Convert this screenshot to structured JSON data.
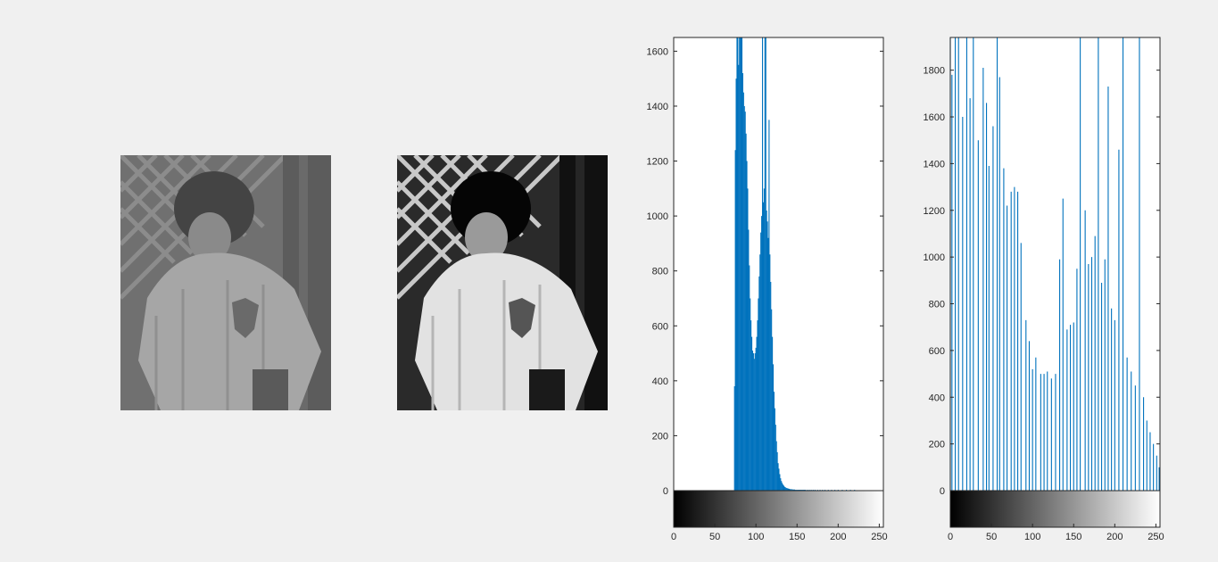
{
  "figure": {
    "background": "#f0f0f0",
    "bar_color": "#0072bd",
    "images": [
      {
        "name": "original",
        "tone": "low-contrast grayscale",
        "luma_range": [
          74,
          160
        ]
      },
      {
        "name": "equalized",
        "tone": "histogram-equalized grayscale",
        "luma_range": [
          0,
          255
        ]
      }
    ]
  },
  "chart_data": [
    {
      "type": "bar",
      "title": "",
      "xlabel": "",
      "ylabel": "",
      "xlim": [
        0,
        255
      ],
      "ylim": [
        0,
        1650
      ],
      "xticks": [
        0,
        50,
        100,
        150,
        200,
        250
      ],
      "yticks": [
        0,
        200,
        400,
        600,
        800,
        1000,
        1200,
        1400,
        1600
      ],
      "colorbar": "gray 0-255",
      "series": [
        {
          "x": [
            74,
            75,
            76,
            77,
            78,
            79,
            80,
            81,
            82,
            83,
            84,
            85,
            86,
            87,
            88,
            89,
            90,
            91,
            92,
            93,
            94,
            95,
            96,
            97,
            98,
            99,
            100,
            101,
            102,
            103,
            104,
            105,
            106,
            107,
            108,
            109,
            110,
            111,
            112,
            113,
            114,
            115,
            116,
            117,
            118,
            119,
            120,
            121,
            122,
            123,
            124,
            125,
            126,
            127,
            128,
            129,
            130,
            131,
            132,
            133,
            134,
            135,
            136,
            137,
            138,
            139,
            140,
            141,
            142,
            143,
            144,
            145,
            146,
            147,
            148,
            149,
            150,
            151,
            152,
            153,
            154,
            155,
            156,
            157,
            158,
            159,
            160,
            162,
            164,
            166,
            168,
            170,
            172,
            175,
            178,
            181,
            184,
            188,
            192,
            196,
            200,
            205,
            210,
            215,
            220
          ],
          "values": [
            380,
            1240,
            1500,
            1650,
            1650,
            1550,
            1650,
            1650,
            1650,
            1650,
            1520,
            1450,
            1400,
            1380,
            1300,
            1200,
            1100,
            950,
            820,
            700,
            620,
            560,
            510,
            500,
            480,
            500,
            520,
            560,
            620,
            700,
            780,
            860,
            940,
            1000,
            1650,
            1050,
            1100,
            1650,
            1650,
            1020,
            980,
            920,
            1350,
            860,
            760,
            660,
            560,
            460,
            360,
            300,
            240,
            180,
            140,
            100,
            80,
            60,
            45,
            35,
            28,
            22,
            18,
            14,
            12,
            10,
            9,
            8,
            7,
            6,
            5,
            5,
            5,
            4,
            4,
            4,
            3,
            3,
            3,
            3,
            3,
            3,
            3,
            3,
            3,
            3,
            3,
            3,
            3,
            3,
            3,
            3,
            3,
            3,
            3,
            3,
            3,
            3,
            3,
            3,
            3,
            3,
            3,
            3,
            3,
            3,
            3
          ]
        }
      ]
    },
    {
      "type": "bar",
      "title": "",
      "xlabel": "",
      "ylabel": "",
      "xlim": [
        0,
        255
      ],
      "ylim": [
        0,
        1940
      ],
      "xticks": [
        0,
        50,
        100,
        150,
        200,
        250
      ],
      "yticks": [
        0,
        200,
        400,
        600,
        800,
        1000,
        1200,
        1400,
        1600,
        1800
      ],
      "colorbar": "gray 0-255",
      "series": [
        {
          "x": [
            0,
            2,
            6,
            10,
            15,
            20,
            24,
            28,
            34,
            40,
            44,
            47,
            52,
            57,
            60,
            65,
            69,
            74,
            78,
            82,
            86,
            92,
            96,
            100,
            104,
            110,
            114,
            118,
            123,
            128,
            133,
            137,
            142,
            146,
            150,
            154,
            158,
            164,
            168,
            172,
            176,
            180,
            184,
            188,
            192,
            196,
            200,
            205,
            210,
            215,
            220,
            225,
            230,
            235,
            239,
            243,
            247,
            251,
            254
          ],
          "values": [
            1940,
            1780,
            1940,
            1940,
            1600,
            1940,
            1680,
            1940,
            1500,
            1810,
            1660,
            1390,
            1560,
            1940,
            1770,
            1380,
            1220,
            1280,
            1300,
            1280,
            1060,
            730,
            640,
            520,
            570,
            500,
            500,
            510,
            480,
            500,
            990,
            1250,
            690,
            710,
            720,
            950,
            1940,
            1200,
            970,
            1000,
            1090,
            1940,
            890,
            990,
            1730,
            780,
            730,
            1460,
            1940,
            570,
            510,
            450,
            1940,
            400,
            300,
            250,
            200,
            150,
            100
          ]
        }
      ]
    }
  ]
}
